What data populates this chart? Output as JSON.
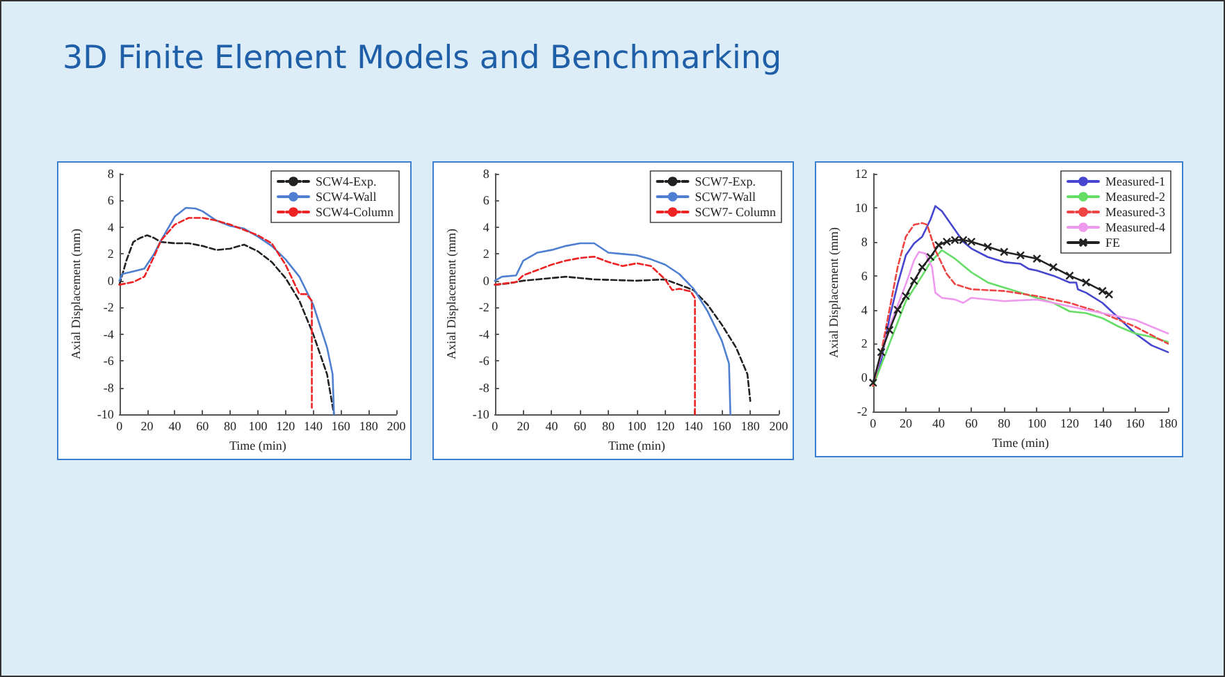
{
  "chart_data": [
    {
      "type": "line",
      "title": "3D Finite Element Models and Benchmarking",
      "xlabel": "Time (min)",
      "ylabel": "Axial Displacement (mm)",
      "xlim": [
        0,
        200
      ],
      "xticks": [
        0,
        20,
        40,
        60,
        80,
        100,
        120,
        140,
        160,
        180,
        200
      ],
      "ylim": [
        -10,
        8
      ],
      "yticks": [
        -10,
        -8,
        -6,
        -4,
        -2,
        0,
        2,
        4,
        6,
        8
      ],
      "legend": "top right",
      "marker": "none",
      "series": [
        {
          "name": "SCW4-Exp.",
          "color": "#222222",
          "line_style": "dashed",
          "x": [
            0,
            5,
            10,
            15,
            20,
            25,
            30,
            40,
            50,
            60,
            70,
            80,
            90,
            100,
            110,
            120,
            130,
            140,
            150,
            155
          ],
          "values": [
            -0.3,
            1.5,
            2.9,
            3.2,
            3.4,
            3.2,
            2.9,
            2.8,
            2.8,
            2.6,
            2.3,
            2.4,
            2.7,
            2.2,
            1.4,
            0.2,
            -1.5,
            -4,
            -7,
            -10
          ]
        },
        {
          "name": "SCW4-Wall",
          "color": "#4f7fd0",
          "line_style": "solid",
          "x": [
            0,
            2,
            10,
            18,
            25,
            30,
            40,
            48,
            55,
            60,
            70,
            80,
            90,
            100,
            110,
            120,
            130,
            140,
            150,
            154,
            155
          ],
          "values": [
            0,
            0.5,
            0.7,
            0.9,
            2,
            3,
            4.8,
            5.45,
            5.4,
            5.2,
            4.5,
            4.1,
            3.9,
            3.3,
            2.6,
            1.6,
            0.3,
            -1.8,
            -5,
            -7,
            -10
          ]
        },
        {
          "name": "SCW4-Column",
          "color": "#ee2222",
          "line_style": "dashed",
          "x": [
            0,
            10,
            18,
            25,
            30,
            40,
            50,
            60,
            70,
            80,
            90,
            100,
            110,
            120,
            130,
            135,
            139,
            139
          ],
          "values": [
            -0.3,
            -0.1,
            0.3,
            1.8,
            3,
            4.2,
            4.7,
            4.7,
            4.5,
            4.2,
            3.8,
            3.4,
            2.8,
            1.2,
            -1,
            -1,
            -1.5,
            -9.5
          ]
        }
      ]
    },
    {
      "type": "line",
      "xlabel": "Time (min)",
      "ylabel": "Axial Displacement (mm)",
      "xlim": [
        0,
        200
      ],
      "xticks": [
        0,
        20,
        40,
        60,
        80,
        100,
        120,
        140,
        160,
        180,
        200
      ],
      "ylim": [
        -10,
        8
      ],
      "yticks": [
        -10,
        -8,
        -6,
        -4,
        -2,
        0,
        2,
        4,
        6,
        8
      ],
      "legend": "top right",
      "marker": "none",
      "series": [
        {
          "name": "SCW7-Exp.",
          "color": "#222222",
          "line_style": "dashed",
          "x": [
            0,
            10,
            20,
            30,
            50,
            70,
            100,
            120,
            130,
            140,
            150,
            160,
            170,
            178,
            180
          ],
          "values": [
            -0.3,
            -0.2,
            0,
            0.1,
            0.3,
            0.1,
            0,
            0.1,
            -0.3,
            -0.7,
            -1.8,
            -3.3,
            -5,
            -7,
            -9
          ]
        },
        {
          "name": "SCW7-Wall",
          "color": "#4f7fd0",
          "line_style": "solid",
          "x": [
            0,
            5,
            15,
            20,
            30,
            40,
            50,
            60,
            70,
            80,
            90,
            100,
            110,
            120,
            130,
            140,
            150,
            160,
            165,
            166
          ],
          "values": [
            0,
            0.3,
            0.4,
            1.5,
            2.1,
            2.3,
            2.6,
            2.8,
            2.8,
            2.1,
            2,
            1.9,
            1.6,
            1.2,
            0.5,
            -0.6,
            -2.3,
            -4.5,
            -6.2,
            -10
          ]
        },
        {
          "name": "SCW7- Column",
          "color": "#ee2222",
          "line_style": "dashed",
          "x": [
            0,
            15,
            20,
            30,
            40,
            50,
            60,
            70,
            80,
            90,
            100,
            110,
            120,
            125,
            130,
            138,
            141,
            141
          ],
          "values": [
            -0.3,
            -0.1,
            0.4,
            0.8,
            1.2,
            1.5,
            1.7,
            1.8,
            1.4,
            1.1,
            1.3,
            1.1,
            0.1,
            -0.7,
            -0.6,
            -0.8,
            -1.3,
            -10
          ]
        }
      ]
    },
    {
      "type": "line",
      "xlabel": "Time (min)",
      "ylabel": "Axial Displacement (mm)",
      "xlim": [
        0,
        180
      ],
      "xticks": [
        0,
        20,
        40,
        60,
        80,
        100,
        120,
        140,
        160,
        180
      ],
      "ylim": [
        -2,
        12
      ],
      "yticks": [
        -2,
        0,
        2,
        4,
        6,
        8,
        10,
        12
      ],
      "legend": "top right",
      "marker": "none",
      "series": [
        {
          "name": "Measured-1",
          "color": "#4646d0",
          "line_style": "solid",
          "x": [
            0,
            5,
            10,
            15,
            20,
            25,
            30,
            35,
            38,
            42,
            50,
            55,
            60,
            70,
            80,
            90,
            95,
            100,
            110,
            120,
            124,
            125,
            130,
            140,
            150,
            160,
            170,
            180
          ],
          "values": [
            -0.3,
            1,
            3.5,
            5.5,
            7.2,
            7.9,
            8.3,
            9.3,
            10.1,
            9.8,
            8.7,
            8,
            7.6,
            7.1,
            6.8,
            6.7,
            6.4,
            6.3,
            6,
            5.6,
            5.6,
            5.2,
            5,
            4.4,
            3.5,
            2.6,
            1.9,
            1.5
          ]
        },
        {
          "name": "Measured-2",
          "color": "#66dd66",
          "line_style": "solid",
          "x": [
            0,
            10,
            20,
            30,
            35,
            42,
            50,
            60,
            70,
            80,
            90,
            100,
            110,
            120,
            130,
            140,
            150,
            160,
            170,
            180
          ],
          "values": [
            -0.5,
            2,
            4.5,
            6,
            6.8,
            7.5,
            7,
            6.2,
            5.6,
            5.3,
            5,
            4.7,
            4.4,
            3.9,
            3.8,
            3.5,
            3,
            2.6,
            2.4,
            2.1
          ]
        },
        {
          "name": "Measured-3",
          "color": "#ee4444",
          "line_style": "dashed",
          "x": [
            0,
            5,
            10,
            15,
            20,
            25,
            30,
            33,
            38,
            45,
            50,
            60,
            80,
            100,
            120,
            140,
            160,
            170,
            180
          ],
          "values": [
            -0.5,
            1.5,
            4,
            6.5,
            8.3,
            9,
            9.1,
            9,
            7.5,
            6.1,
            5.5,
            5.2,
            5.1,
            4.8,
            4.4,
            3.8,
            3,
            2.5,
            2
          ]
        },
        {
          "name": "Measured-4",
          "color": "#ee99ee",
          "line_style": "solid",
          "x": [
            0,
            10,
            20,
            25,
            28,
            32,
            36,
            38,
            42,
            50,
            55,
            60,
            80,
            100,
            120,
            140,
            160,
            180
          ],
          "values": [
            -0.3,
            3,
            5.5,
            6.9,
            7.4,
            7.3,
            6.5,
            5,
            4.7,
            4.6,
            4.4,
            4.7,
            4.5,
            4.6,
            4.2,
            3.8,
            3.4,
            2.6
          ]
        },
        {
          "name": "FE",
          "color": "#222222",
          "line_style": "solid",
          "marker": "cross",
          "x": [
            0,
            5,
            10,
            15,
            20,
            25,
            30,
            35,
            40,
            45,
            50,
            55,
            60,
            70,
            80,
            90,
            100,
            110,
            120,
            130,
            140,
            144
          ],
          "values": [
            -0.3,
            1.5,
            2.8,
            4,
            4.8,
            5.7,
            6.5,
            7.1,
            7.8,
            8,
            8.1,
            8.1,
            8,
            7.7,
            7.4,
            7.2,
            7,
            6.5,
            6,
            5.6,
            5.1,
            4.9
          ]
        }
      ]
    }
  ]
}
